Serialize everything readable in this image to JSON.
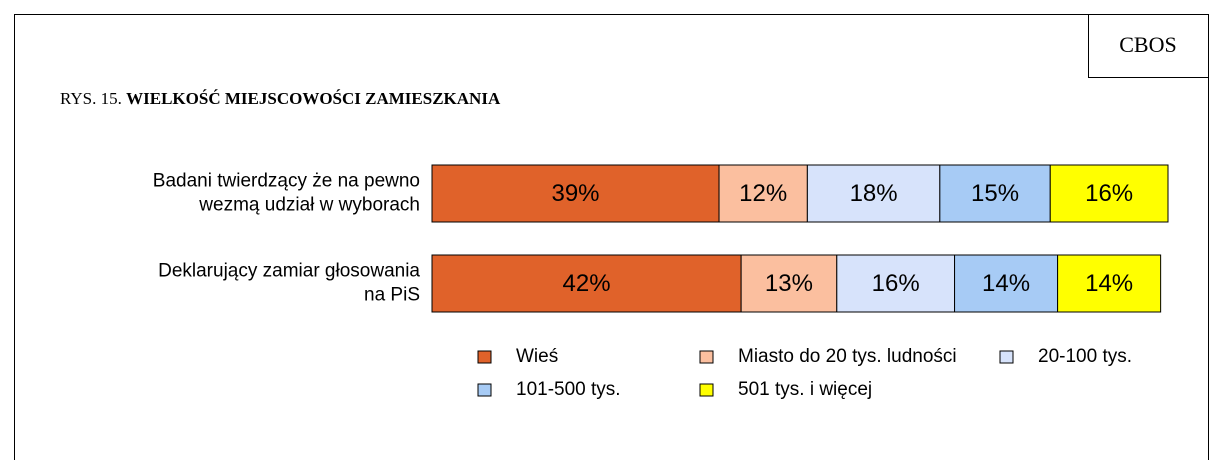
{
  "source": "CBOS",
  "chart_data": {
    "type": "stacked-bar-horizontal",
    "figure_label": "RYS. 15.",
    "title": "WIELKOŚĆ MIEJSCOWOŚCI ZAMIESZKANIA",
    "categories": [
      "Badani twierdzący że na pewno\nwezmą udział w wyborach",
      "Deklarujący zamiar głosowania\nna PiS"
    ],
    "xlim": [
      0,
      100
    ],
    "series": [
      {
        "name": "Wieś",
        "color": "#e0622a",
        "values": [
          39,
          42
        ],
        "value_labels": [
          "39%",
          "42%"
        ]
      },
      {
        "name": "Miasto do 20 tys. ludności",
        "color": "#fbbf9f",
        "values": [
          12,
          13
        ],
        "value_labels": [
          "12%",
          "13%"
        ]
      },
      {
        "name": "20-100 tys.",
        "color": "#d7e3fb",
        "values": [
          18,
          16
        ],
        "value_labels": [
          "18%",
          "16%"
        ]
      },
      {
        "name": "101-500 tys.",
        "color": "#a7cbf5",
        "values": [
          15,
          14
        ],
        "value_labels": [
          "15%",
          "14%"
        ]
      },
      {
        "name": "501 tys. i więcej",
        "color": "#ffff00",
        "values": [
          16,
          14
        ],
        "value_labels": [
          "16%",
          "14%"
        ]
      }
    ]
  }
}
